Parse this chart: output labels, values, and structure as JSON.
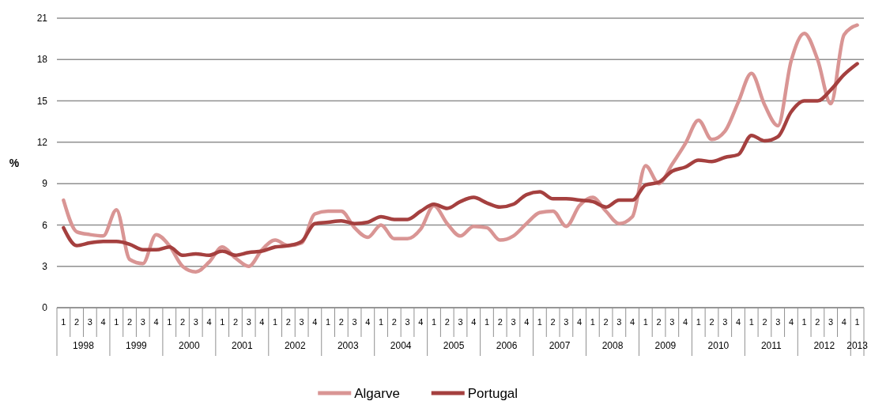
{
  "chart_data": {
    "type": "line",
    "ylabel": "%",
    "categories": [
      "1",
      "2",
      "3",
      "4",
      "1",
      "2",
      "3",
      "4",
      "1",
      "2",
      "3",
      "4",
      "1",
      "2",
      "3",
      "4",
      "1",
      "2",
      "3",
      "4",
      "1",
      "2",
      "3",
      "4",
      "1",
      "2",
      "3",
      "4",
      "1",
      "2",
      "3",
      "4",
      "1",
      "2",
      "3",
      "4",
      "1",
      "2",
      "3",
      "4",
      "1",
      "2",
      "3",
      "4",
      "1",
      "2",
      "3",
      "4",
      "1",
      "2",
      "3",
      "4",
      "1",
      "2",
      "3",
      "4",
      "1",
      "2",
      "3",
      "4",
      "1"
    ],
    "annotations": [
      "1998",
      "1999",
      "2000",
      "2001",
      "2002",
      "2003",
      "2004",
      "2005",
      "2006",
      "2007",
      "2008",
      "2009",
      "2010",
      "2011",
      "2012",
      "2013"
    ],
    "series": [
      {
        "name": "Algarve",
        "color": "#d99594",
        "values": [
          7.8,
          5.5,
          5.3,
          5.2,
          7.1,
          3.5,
          3.2,
          5.3,
          4.5,
          3.0,
          2.6,
          3.3,
          4.4,
          3.6,
          3.0,
          4.2,
          4.9,
          4.5,
          4.7,
          6.8,
          7.0,
          7.0,
          5.8,
          5.1,
          6.0,
          5.0,
          5.0,
          5.7,
          7.4,
          6.1,
          5.2,
          5.9,
          5.8,
          4.9,
          5.2,
          6.1,
          6.9,
          7.0,
          5.9,
          7.4,
          8.0,
          7.0,
          6.1,
          6.6,
          10.3,
          9.0,
          10.4,
          11.9,
          13.6,
          12.2,
          12.8,
          14.9,
          17.0,
          14.7,
          13.2,
          17.9,
          19.9,
          18.0,
          14.8,
          19.8,
          20.5
        ]
      },
      {
        "name": "Portugal",
        "color": "#a5403f",
        "values": [
          5.8,
          4.5,
          4.7,
          4.8,
          4.8,
          4.6,
          4.2,
          4.2,
          4.4,
          3.8,
          3.9,
          3.8,
          4.1,
          3.8,
          4.0,
          4.1,
          4.4,
          4.5,
          4.8,
          6.1,
          6.2,
          6.3,
          6.1,
          6.2,
          6.6,
          6.4,
          6.4,
          7.0,
          7.5,
          7.2,
          7.7,
          8.0,
          7.6,
          7.3,
          7.5,
          8.2,
          8.4,
          7.9,
          7.9,
          7.8,
          7.7,
          7.3,
          7.8,
          7.8,
          8.9,
          9.1,
          9.9,
          10.2,
          10.7,
          10.6,
          10.9,
          11.1,
          12.5,
          12.1,
          12.4,
          14.2,
          15.0,
          15.0,
          15.8,
          16.9,
          17.7
        ]
      }
    ],
    "ylim": [
      0,
      21
    ],
    "yticks": [
      0,
      3,
      6,
      9,
      12,
      15,
      18,
      21
    ],
    "grid": "y",
    "legend": "bottom"
  }
}
